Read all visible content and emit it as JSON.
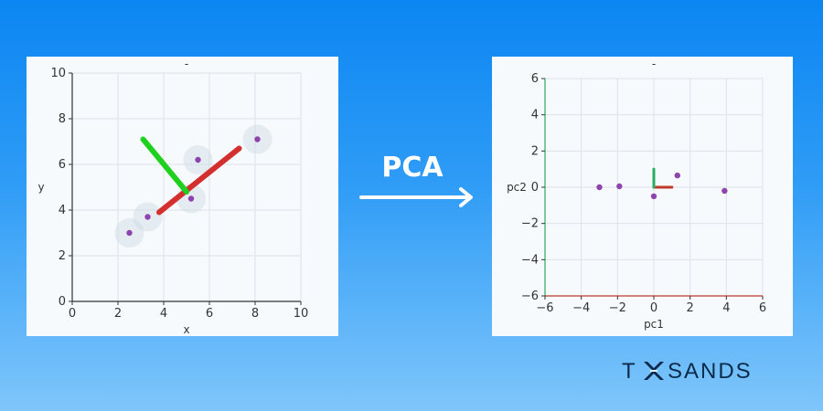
{
  "arrow_label": "PCA",
  "logo_text": {
    "left": "T",
    "right": "SANDS"
  },
  "colors": {
    "background_top": "#0b86f2",
    "background_bottom": "#7fc6fb",
    "point": "#8e44ad",
    "pc1_line": "#d32f2f",
    "pc2_line": "#1fd01f",
    "pc1_axis": "#c0392b",
    "pc2_axis": "#27ae60"
  },
  "chart_data": [
    {
      "type": "scatter",
      "title": "-",
      "xlabel": "x",
      "ylabel": "y",
      "xlim": [
        0,
        10
      ],
      "ylim": [
        0,
        10
      ],
      "xticks": [
        "0",
        "2",
        "4",
        "6",
        "8",
        "10"
      ],
      "yticks": [
        "0",
        "2",
        "4",
        "6",
        "8",
        "10"
      ],
      "grid": true,
      "points": [
        {
          "x": 2.5,
          "y": 3.0
        },
        {
          "x": 3.3,
          "y": 3.7
        },
        {
          "x": 5.2,
          "y": 4.5
        },
        {
          "x": 5.5,
          "y": 6.2
        },
        {
          "x": 8.1,
          "y": 7.1
        }
      ],
      "component_lines": [
        {
          "name": "pc1",
          "x": [
            3.8,
            7.3
          ],
          "y": [
            3.9,
            6.7
          ]
        },
        {
          "name": "pc2",
          "x": [
            3.1,
            5.0
          ],
          "y": [
            7.1,
            4.8
          ]
        }
      ]
    },
    {
      "type": "scatter",
      "title": "-",
      "xlabel": "pc1",
      "ylabel": "pc2",
      "xlim": [
        -6,
        6
      ],
      "ylim": [
        -6,
        6
      ],
      "xticks": [
        "−6",
        "−4",
        "−2",
        "0",
        "2",
        "4",
        "6"
      ],
      "yticks": [
        "−6",
        "−4",
        "−2",
        "0",
        "2",
        "4",
        "6"
      ],
      "grid": true,
      "points": [
        {
          "x": -3.0,
          "y": 0.0
        },
        {
          "x": -1.9,
          "y": 0.05
        },
        {
          "x": 0.0,
          "y": -0.5
        },
        {
          "x": 1.3,
          "y": 0.65
        },
        {
          "x": 3.9,
          "y": -0.2
        }
      ],
      "component_lines": [
        {
          "name": "pc1",
          "x": [
            0,
            1
          ],
          "y": [
            0,
            0
          ]
        },
        {
          "name": "pc2",
          "x": [
            0,
            0
          ],
          "y": [
            0,
            1
          ]
        }
      ]
    }
  ]
}
